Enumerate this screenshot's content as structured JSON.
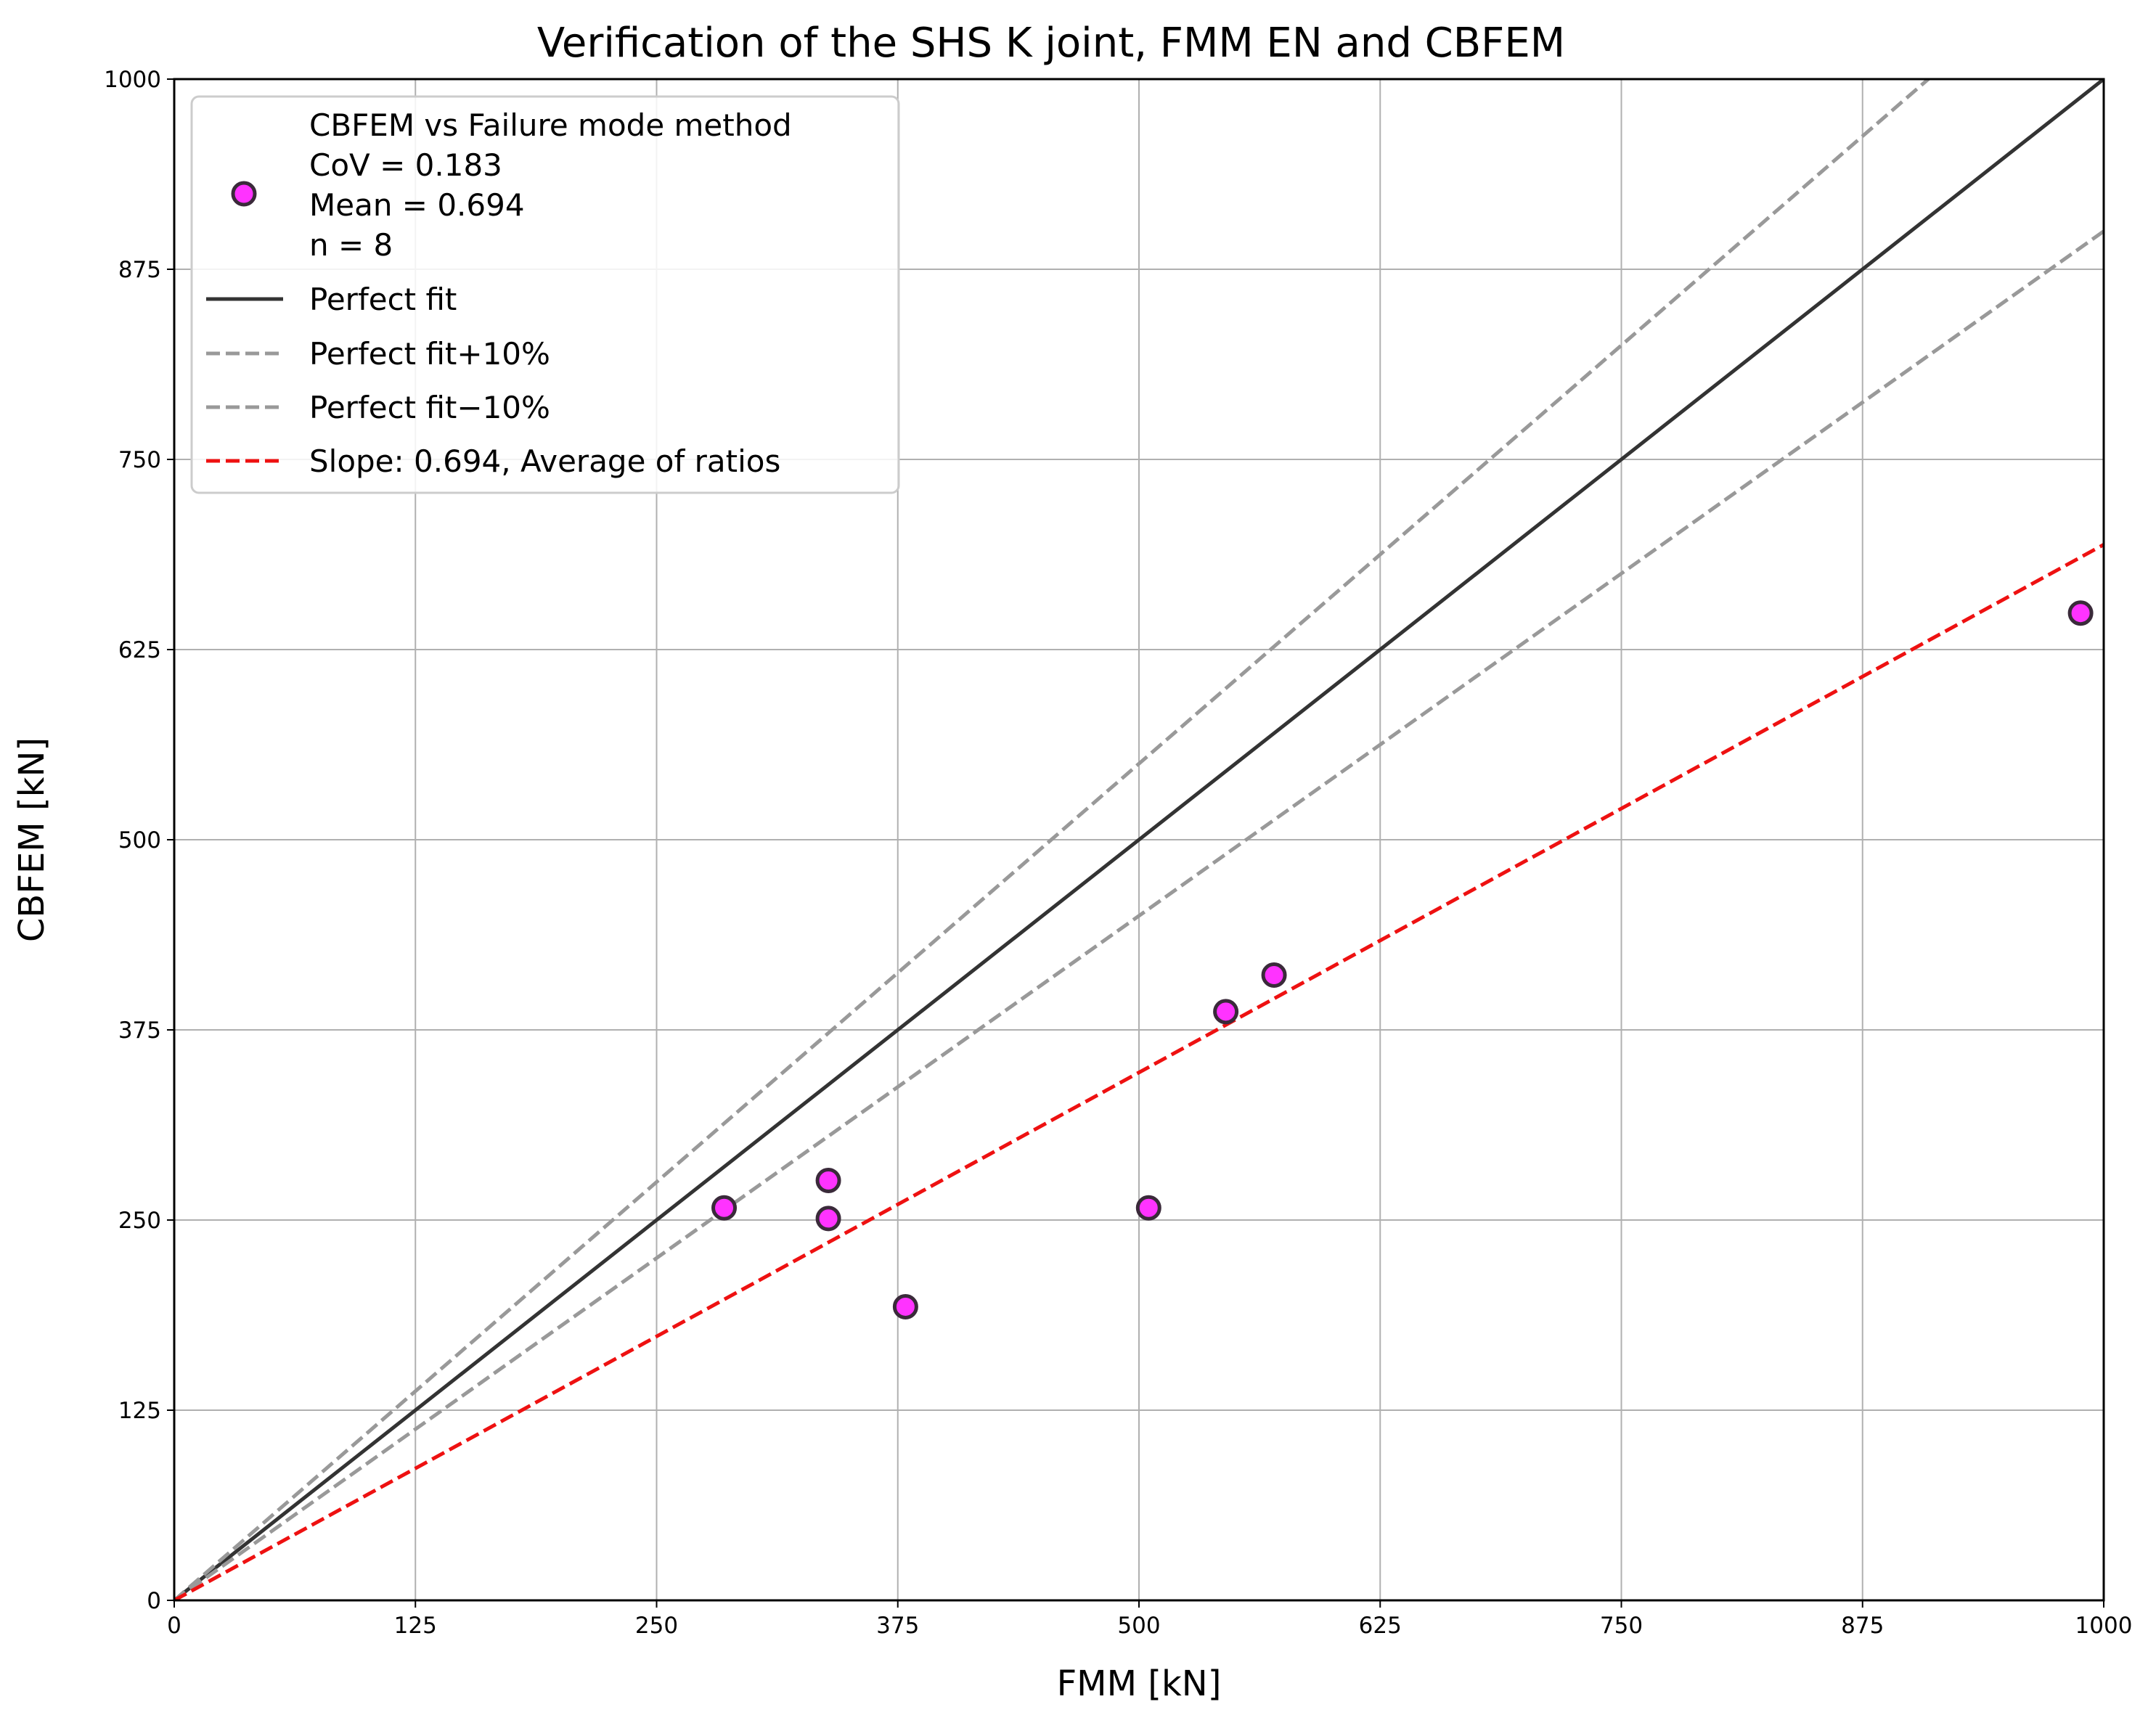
{
  "chart_data": {
    "type": "scatter",
    "title": "Verification of the SHS K joint, FMM EN and CBFEM",
    "xlabel": "FMM [kN]",
    "ylabel": "CBFEM [kN]",
    "xlim": [
      0,
      1000
    ],
    "ylim": [
      0,
      1000
    ],
    "xticks": [
      0,
      125,
      250,
      375,
      500,
      625,
      750,
      875,
      1000
    ],
    "yticks": [
      0,
      125,
      250,
      375,
      500,
      625,
      750,
      875,
      1000
    ],
    "xtick_labels": [
      "0",
      "125",
      "250",
      "375",
      "500",
      "625",
      "750",
      "875",
      "1000"
    ],
    "ytick_labels": [
      "0",
      "125",
      "250",
      "375",
      "500",
      "625",
      "750",
      "875",
      "1000"
    ],
    "grid": true,
    "legend_position": "top-left",
    "series": [
      {
        "name": "CBFEM vs Failure mode method",
        "kind": "points",
        "stats": [
          "CoV = 0.183",
          "Mean = 0.694",
          "n = 8"
        ],
        "color": "#ff33ff",
        "edge_color": "#3a2a3a",
        "x": [
          285,
          339,
          339,
          379,
          505,
          545,
          570,
          988
        ],
        "y": [
          258,
          276,
          251,
          193,
          258,
          387,
          411,
          649
        ]
      },
      {
        "name": "Perfect fit",
        "kind": "line",
        "slope": 1.0,
        "style": "solid",
        "color": "#333333"
      },
      {
        "name": "Perfect fit+10%",
        "kind": "line",
        "slope": 1.1,
        "style": "dashed",
        "color": "#999999"
      },
      {
        "name": "Perfect fit−10%",
        "kind": "line",
        "slope": 0.9,
        "style": "dashed",
        "color": "#999999"
      },
      {
        "name": "Slope: 0.694, Average of ratios",
        "kind": "line",
        "slope": 0.694,
        "style": "dashed",
        "color": "#ee1111"
      }
    ]
  }
}
